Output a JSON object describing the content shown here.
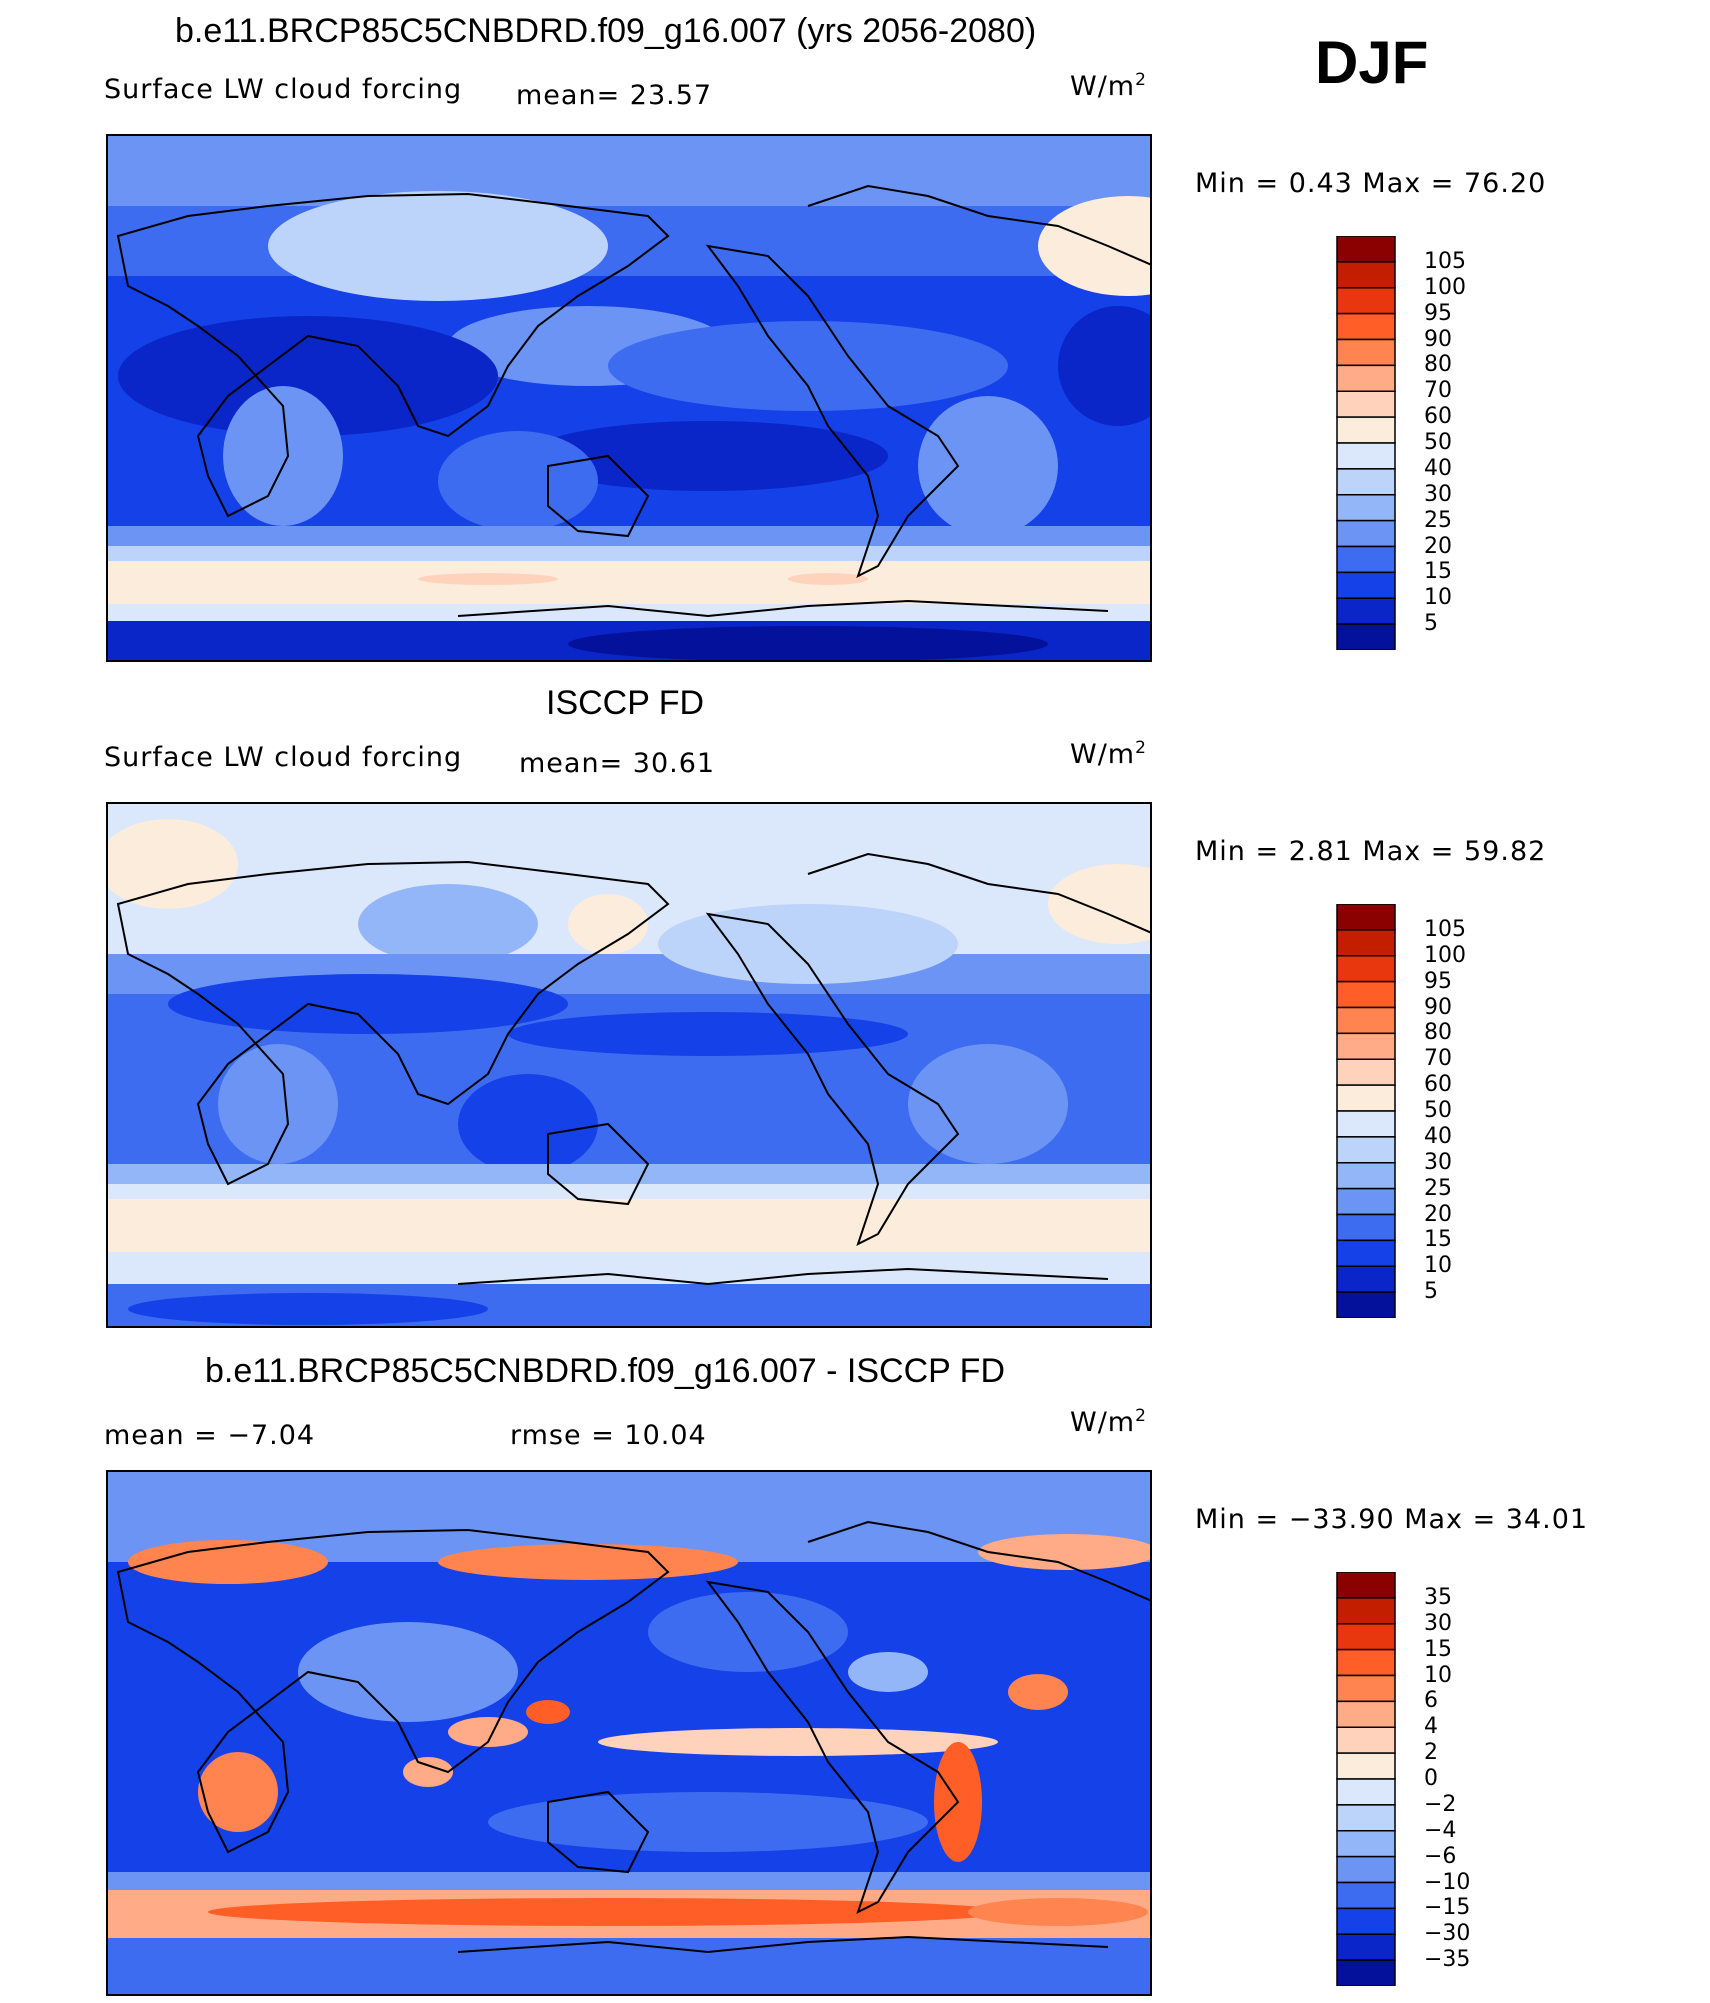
{
  "season": "DJF",
  "panels": [
    {
      "title": "b.e11.BRCP85C5CNBDRD.f09_g16.007 (yrs 2056-2080)",
      "left_label": "Surface LW cloud forcing",
      "mean_label": "mean=   23.57",
      "units": "W/m",
      "units_sup": "2",
      "minmax": "Min =    0.43 Max =   76.20"
    },
    {
      "title": "ISCCP FD",
      "left_label": "Surface LW cloud forcing",
      "mean_label": "mean=   30.61",
      "units": "W/m",
      "units_sup": "2",
      "minmax": "Min =    2.81 Max =   59.82"
    },
    {
      "title": "b.e11.BRCP85C5CNBDRD.f09_g16.007 - ISCCP FD",
      "left_label": "mean =   −7.04",
      "mean_label": "rmse =   10.04",
      "units": "W/m",
      "units_sup": "2",
      "minmax": "Min = −33.90 Max =   34.01"
    }
  ],
  "colorbars": {
    "abs_levels": [
      "105",
      "100",
      "95",
      "90",
      "80",
      "70",
      "60",
      "50",
      "40",
      "30",
      "25",
      "20",
      "15",
      "10",
      "5"
    ],
    "diff_levels": [
      "35",
      "30",
      "15",
      "10",
      "6",
      "4",
      "2",
      "0",
      "−2",
      "−4",
      "−6",
      "−10",
      "−15",
      "−30",
      "−35"
    ],
    "colors": [
      "#8b0000",
      "#c41e00",
      "#e8360e",
      "#ff5e26",
      "#ff8450",
      "#ffab88",
      "#ffd2bc",
      "#fcecdc",
      "#dbe8fb",
      "#bcd3fa",
      "#93b6f8",
      "#6b94f5",
      "#3e6cf0",
      "#1541e8",
      "#0a26c8",
      "#04119a"
    ]
  },
  "chart_data": [
    {
      "type": "heatmap",
      "title": "b.e11.BRCP85C5CNBDRD.f09_g16.007 (yrs 2056-2080)",
      "subtitle": "Surface LW cloud forcing",
      "units": "W/m2",
      "mean": 23.57,
      "min": 0.43,
      "max": 76.2,
      "contour_levels": [
        5,
        10,
        15,
        20,
        25,
        30,
        40,
        50,
        60,
        70,
        80,
        90,
        95,
        100,
        105
      ]
    },
    {
      "type": "heatmap",
      "title": "ISCCP FD",
      "subtitle": "Surface LW cloud forcing",
      "units": "W/m2",
      "mean": 30.61,
      "min": 2.81,
      "max": 59.82,
      "contour_levels": [
        5,
        10,
        15,
        20,
        25,
        30,
        40,
        50,
        60,
        70,
        80,
        90,
        95,
        100,
        105
      ]
    },
    {
      "type": "heatmap",
      "title": "b.e11.BRCP85C5CNBDRD.f09_g16.007 - ISCCP FD",
      "units": "W/m2",
      "mean": -7.04,
      "rmse": 10.04,
      "min": -33.9,
      "max": 34.01,
      "contour_levels": [
        -35,
        -30,
        -15,
        -10,
        -6,
        -4,
        -2,
        0,
        2,
        4,
        6,
        10,
        15,
        30,
        35
      ]
    }
  ]
}
